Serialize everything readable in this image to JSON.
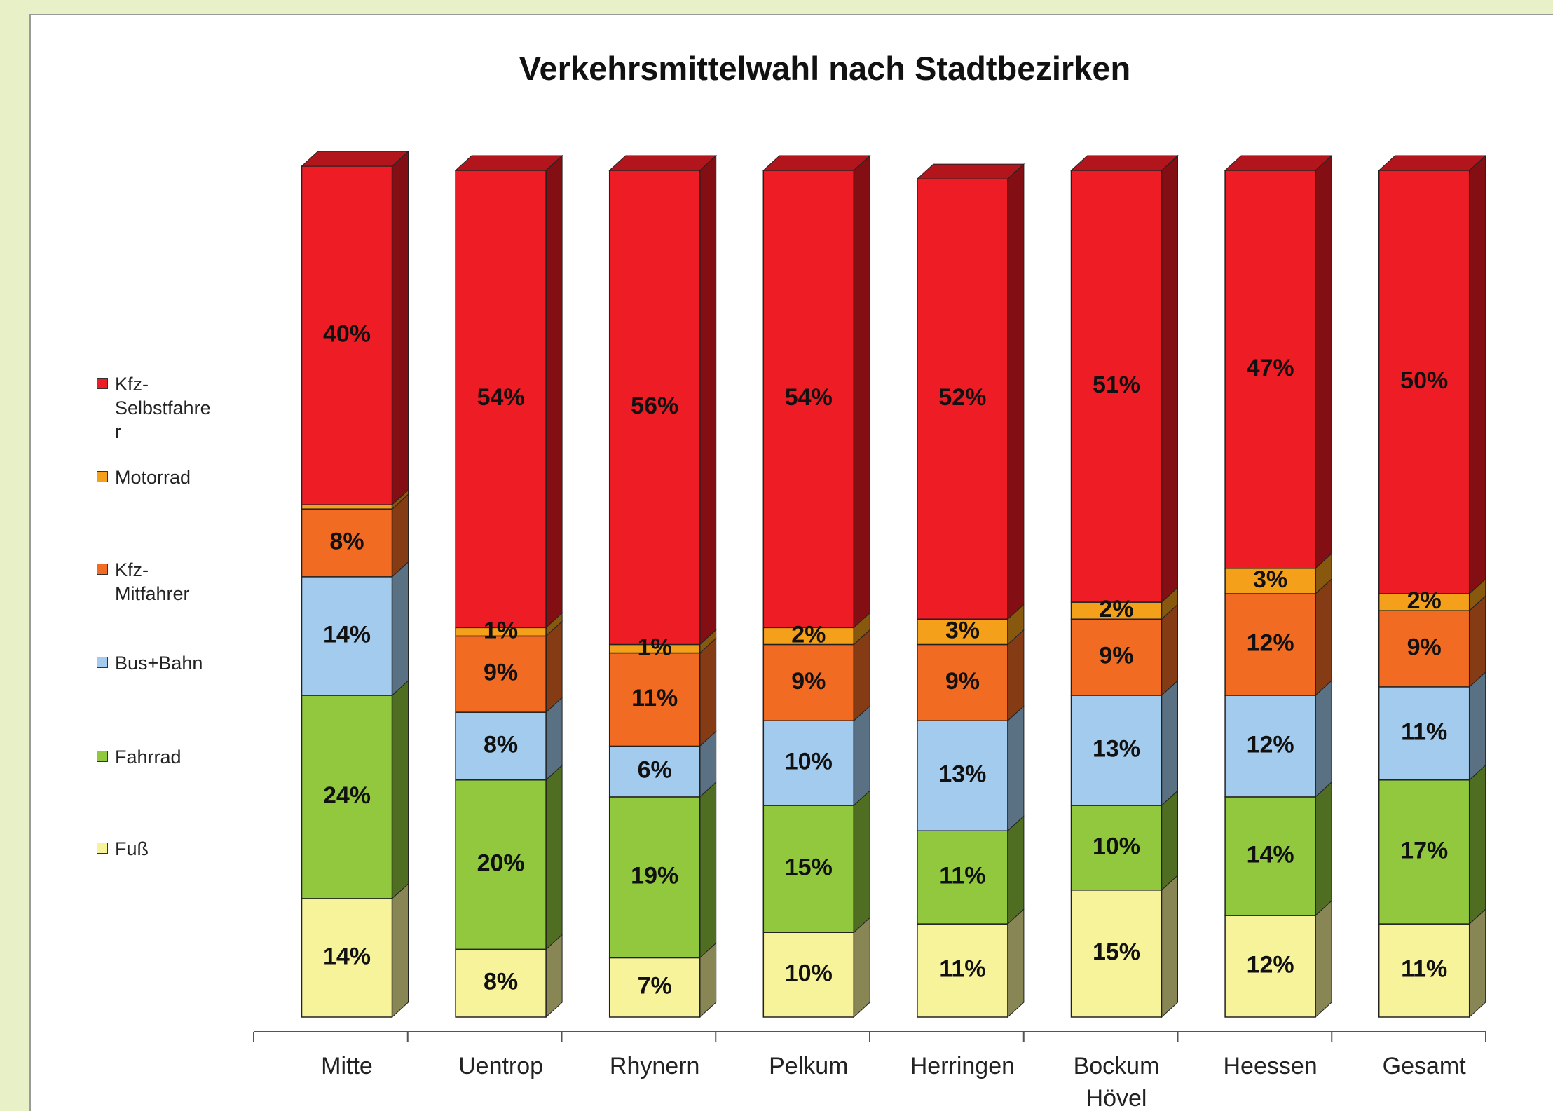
{
  "chart_data": {
    "type": "bar",
    "stacked": true,
    "title": "Verkehrsmittelwahl nach Stadtbezirken",
    "categories": [
      "Mitte",
      "Uentrop",
      "Rhynern",
      "Pelkum",
      "Herringen",
      "Bockum Hövel",
      "Heessen",
      "Gesamt"
    ],
    "ylim": [
      0,
      100
    ],
    "series": [
      {
        "name": "Fuß",
        "color": "#f7f39a",
        "values": [
          14,
          8,
          7,
          10,
          11,
          15,
          12,
          11
        ],
        "value_labels": [
          "14%",
          "8%",
          "7%",
          "10%",
          "11%",
          "15%",
          "12%",
          "11%"
        ]
      },
      {
        "name": "Fahrrad",
        "color": "#92c83e",
        "values": [
          24,
          20,
          19,
          15,
          11,
          10,
          14,
          17
        ],
        "value_labels": [
          "24%",
          "20%",
          "19%",
          "15%",
          "11%",
          "10%",
          "14%",
          "17%"
        ]
      },
      {
        "name": "Bus+Bahn",
        "color": "#a3cbee",
        "values": [
          14,
          8,
          6,
          10,
          13,
          13,
          12,
          11
        ],
        "value_labels": [
          "14%",
          "8%",
          "6%",
          "10%",
          "13%",
          "13%",
          "12%",
          "11%"
        ]
      },
      {
        "name": "Kfz-Mitfahrer",
        "color": "#f26b22",
        "values": [
          8,
          9,
          11,
          9,
          9,
          9,
          12,
          9
        ],
        "value_labels": [
          "8%",
          "9%",
          "11%",
          "9%",
          "9%",
          "9%",
          "12%",
          "9%"
        ]
      },
      {
        "name": "Motorrad",
        "color": "#f5a01a",
        "values": [
          0.5,
          1,
          1,
          2,
          3,
          2,
          3,
          2
        ],
        "value_labels": [
          null,
          "1%",
          "1%",
          "2%",
          "3%",
          "2%",
          "3%",
          "2%"
        ]
      },
      {
        "name": "Kfz-Selbstfahrer",
        "color": "#ee1c25",
        "values": [
          40,
          54,
          56,
          54,
          52,
          51,
          47,
          50
        ],
        "value_labels": [
          "40%",
          "54%",
          "56%",
          "54%",
          "52%",
          "51%",
          "47%",
          "50%"
        ]
      }
    ]
  }
}
